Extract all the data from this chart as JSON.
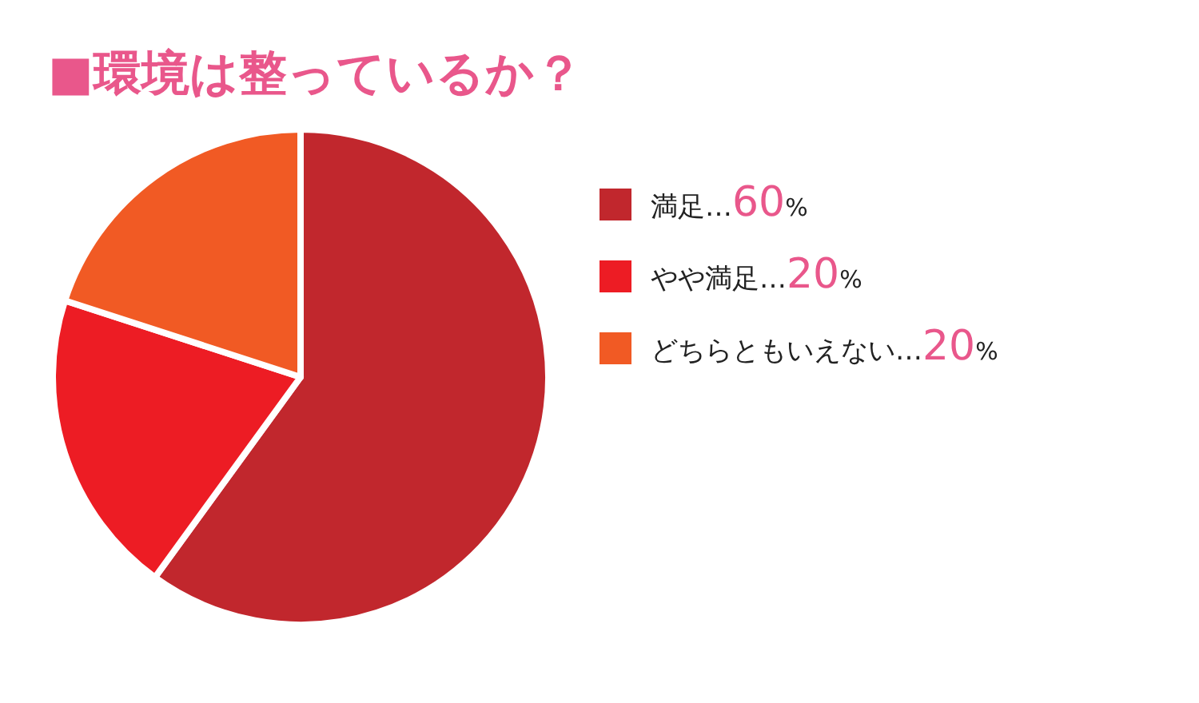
{
  "chart_data": {
    "type": "pie",
    "title": "■環境は整っているか？",
    "categories": [
      "満足",
      "やや満足",
      "どちらともいえない"
    ],
    "values": [
      60,
      20,
      20
    ],
    "colors": [
      "#c1272d",
      "#ed1c24",
      "#f15a24"
    ],
    "value_labels": [
      "…60%",
      "…20%",
      "…20%"
    ],
    "legend": "right"
  }
}
